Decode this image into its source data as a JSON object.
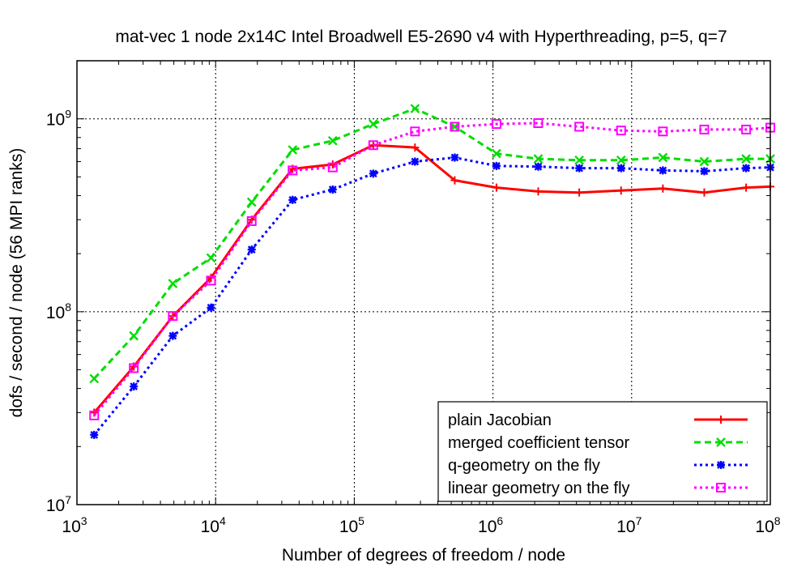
{
  "chart_data": {
    "type": "line",
    "title": "mat-vec 1 node 2x14C Intel Broadwell E5-2690 v4 with Hyperthreading, p=5, q=7",
    "xlabel": "Number of degrees of freedom / node",
    "ylabel": "dofs / second / node (56 MPI ranks)",
    "x_scale": "log",
    "y_scale": "log",
    "xlim": [
      1000,
      100000000
    ],
    "ylim": [
      10000000,
      2000000000
    ],
    "x_ticks": [
      {
        "value": 1000,
        "base": "10",
        "exp": "3"
      },
      {
        "value": 10000,
        "base": "10",
        "exp": "4"
      },
      {
        "value": 100000,
        "base": "10",
        "exp": "5"
      },
      {
        "value": 1000000,
        "base": "10",
        "exp": "6"
      },
      {
        "value": 10000000,
        "base": "10",
        "exp": "7"
      },
      {
        "value": 100000000,
        "base": "10",
        "exp": "8"
      }
    ],
    "y_ticks": [
      {
        "value": 10000000,
        "base": "10",
        "exp": "7"
      },
      {
        "value": 100000000,
        "base": "10",
        "exp": "8"
      },
      {
        "value": 1000000000,
        "base": "10",
        "exp": "9"
      }
    ],
    "grid": true,
    "legend_position": "bottom-right",
    "x": [
      1331,
      2570,
      4913,
      9261,
      18200,
      35900,
      69900,
      137000,
      274000,
      530000,
      1060000,
      2120000,
      4190000,
      8390000,
      16800000,
      33400000,
      66900000,
      100000000
    ],
    "series": [
      {
        "name": "plain Jacobian",
        "color": "#ff0000",
        "dash": "solid",
        "marker": "plus",
        "values": [
          30000000,
          52000000,
          95000000,
          150000000,
          300000000,
          550000000,
          580000000,
          730000000,
          710000000,
          480000000,
          440000000,
          420000000,
          415000000,
          425000000,
          435000000,
          415000000,
          440000000,
          445000000
        ]
      },
      {
        "name": "merged coefficient tensor",
        "color": "#00dd00",
        "dash": "dash",
        "marker": "cross",
        "values": [
          45000000,
          75000000,
          140000000,
          190000000,
          370000000,
          690000000,
          770000000,
          940000000,
          1130000000,
          910000000,
          660000000,
          620000000,
          610000000,
          610000000,
          630000000,
          600000000,
          620000000,
          620000000
        ]
      },
      {
        "name": "q-geometry on the fly",
        "color": "#0000ff",
        "dash": "dot",
        "marker": "star",
        "values": [
          23000000,
          41000000,
          75000000,
          105000000,
          210000000,
          380000000,
          430000000,
          520000000,
          600000000,
          630000000,
          570000000,
          565000000,
          555000000,
          555000000,
          540000000,
          535000000,
          555000000,
          560000000
        ]
      },
      {
        "name": "linear geometry on the fly",
        "color": "#ff00ff",
        "dash": "dot",
        "marker": "box",
        "values": [
          29000000,
          51000000,
          95000000,
          145000000,
          295000000,
          540000000,
          560000000,
          730000000,
          860000000,
          910000000,
          940000000,
          950000000,
          910000000,
          870000000,
          860000000,
          880000000,
          880000000,
          900000000
        ]
      }
    ]
  }
}
